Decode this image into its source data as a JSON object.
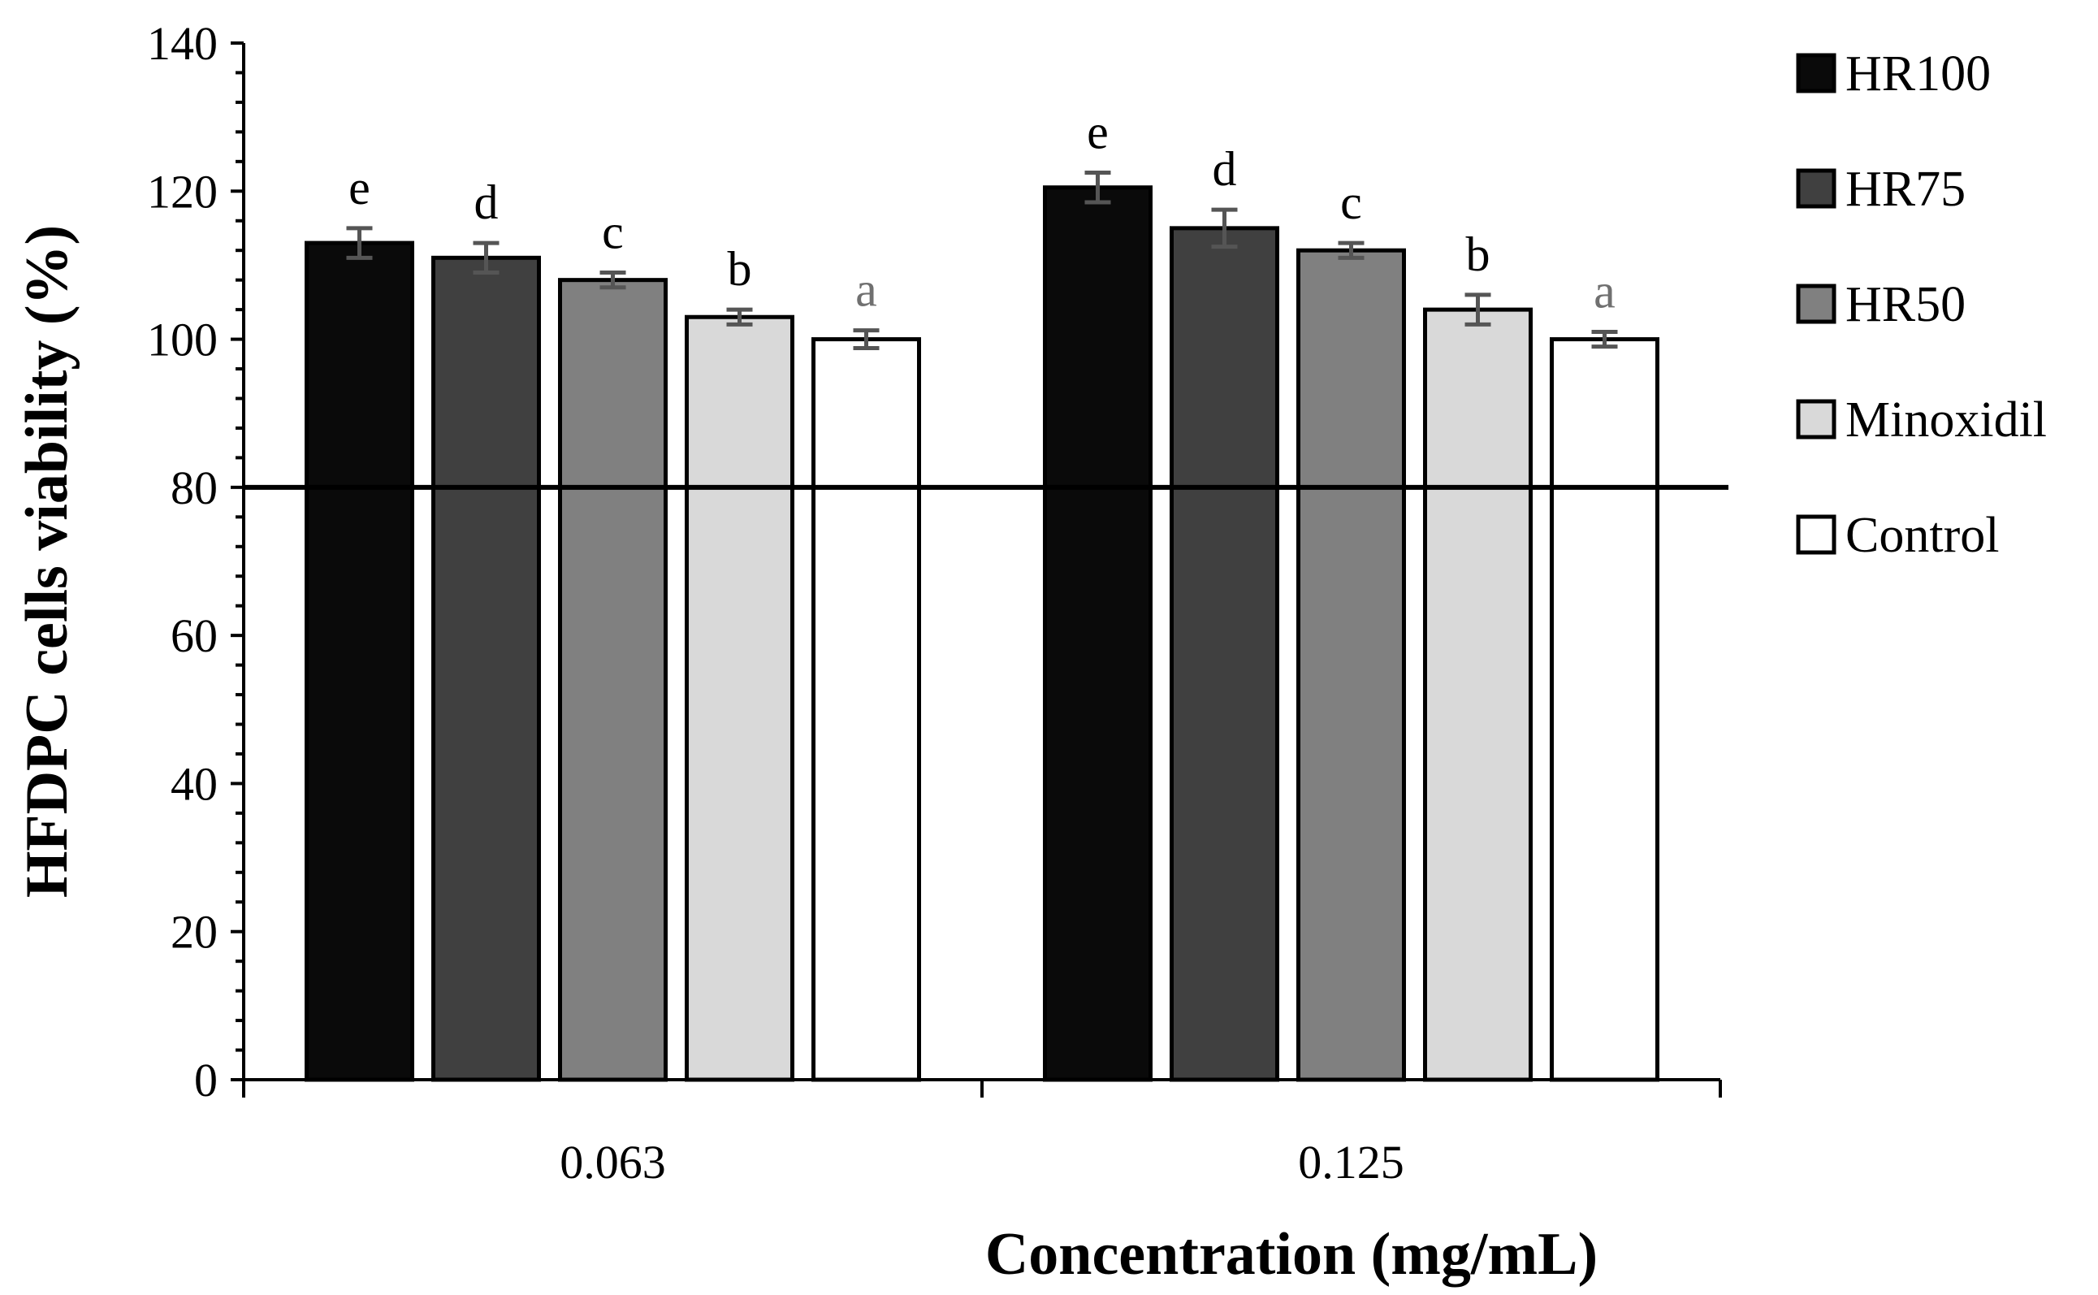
{
  "chart_data": {
    "type": "bar",
    "title": "",
    "xlabel": "Concentration (mg/mL)",
    "ylabel": "HFDPC cells viability (%)",
    "ylim": [
      0,
      140
    ],
    "yticks": [
      "0",
      "20",
      "40",
      "60",
      "80",
      "100",
      "120",
      "140"
    ],
    "categories": [
      "0.063",
      "0.125"
    ],
    "reference_line": 80,
    "legend_position": "right",
    "series": [
      {
        "name": "HR100",
        "color": "#0a0a0a",
        "values": [
          113,
          120.5
        ],
        "errors": [
          2.0,
          2.0
        ],
        "letters": [
          "e",
          "e"
        ],
        "letter_color": "#000000"
      },
      {
        "name": "HR75",
        "color": "#404040",
        "values": [
          111,
          115
        ],
        "errors": [
          2.0,
          2.5
        ],
        "letters": [
          "d",
          "d"
        ],
        "letter_color": "#000000"
      },
      {
        "name": "HR50",
        "color": "#808080",
        "values": [
          108,
          112
        ],
        "errors": [
          1.0,
          1.0
        ],
        "letters": [
          "c",
          "c"
        ],
        "letter_color": "#000000"
      },
      {
        "name": "Minoxidil",
        "color": "#d9d9d9",
        "values": [
          103,
          104
        ],
        "errors": [
          1.0,
          2.0
        ],
        "letters": [
          "b",
          "b"
        ],
        "letter_color": "#000000"
      },
      {
        "name": "Control",
        "color": "#ffffff",
        "values": [
          100,
          100
        ],
        "errors": [
          1.2,
          1.0
        ],
        "letters": [
          "a",
          "a"
        ],
        "letter_color": "#707070"
      }
    ]
  }
}
